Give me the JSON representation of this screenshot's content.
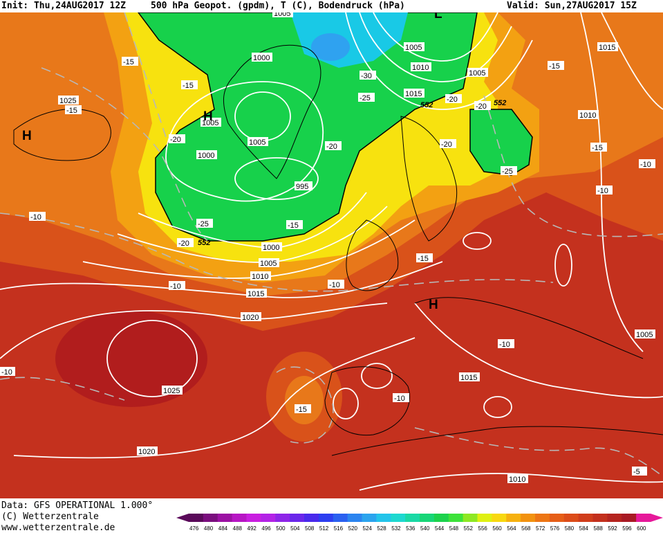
{
  "header": {
    "init": "Init: Thu,24AUG2017 12Z",
    "title": "500 hPa Geopot. (gpdm), T (C), Bodendruck (hPa)",
    "valid": "Valid: Sun,27AUG2017 15Z"
  },
  "footer": {
    "data_line": "Data: GFS OPERATIONAL 1.000°",
    "copyright": "(C) Wetterzentrale",
    "url": "www.wetterzentrale.de"
  },
  "colors": {
    "red_deep": "#b11d1d",
    "red": "#c4311e",
    "orange_red": "#d9521a",
    "orange": "#e8781a",
    "amber": "#f3a112",
    "yellow": "#f7e20f",
    "green": "#17d14b",
    "green_light": "#3ee85a",
    "cyan": "#19c9e6",
    "blue": "#2fa2f0"
  },
  "map": {
    "pressure_labels": [
      "1005",
      "1000",
      "1005",
      "1010",
      "1015",
      "1005",
      "1025",
      "1005",
      "1000",
      "1005",
      "995",
      "1000",
      "1005",
      "1010",
      "1015",
      "1020",
      "1025",
      "1020",
      "1015",
      "1010",
      "1010",
      "1015",
      "1005"
    ],
    "temp_labels": [
      "-15",
      "-15",
      "-15",
      "-20",
      "-30",
      "-25",
      "-20",
      "-20",
      "-20",
      "-25",
      "-15",
      "-25",
      "-20",
      "-15",
      "-15",
      "-10",
      "-10",
      "-10",
      "-15",
      "-10",
      "-10",
      "-10",
      "-15",
      "-10",
      "-5",
      "-20",
      "-10"
    ],
    "highs": [
      "H",
      "H",
      "H"
    ],
    "lows": [
      "L"
    ],
    "geopot_labels": [
      "552",
      "552",
      "552"
    ]
  },
  "scale": {
    "ticks": [
      "476",
      "480",
      "484",
      "488",
      "492",
      "496",
      "500",
      "504",
      "508",
      "512",
      "516",
      "520",
      "524",
      "528",
      "532",
      "536",
      "540",
      "544",
      "548",
      "552",
      "556",
      "560",
      "564",
      "568",
      "572",
      "576",
      "580",
      "584",
      "588",
      "592",
      "596",
      "600"
    ],
    "colors": [
      "#5a0a5a",
      "#7a0e7e",
      "#9b11a3",
      "#b716c4",
      "#c91ee0",
      "#b322e6",
      "#8e25e8",
      "#6a26ea",
      "#4929ec",
      "#2d3ef0",
      "#2a60f0",
      "#2b84ef",
      "#2ba4ee",
      "#23c4ea",
      "#1dd8d0",
      "#1ad9a5",
      "#17d677",
      "#1cd24c",
      "#3de23a",
      "#8ee823",
      "#dff012",
      "#f8d810",
      "#f6b10f",
      "#f2920f",
      "#ed7514",
      "#e65e17",
      "#dc4c19",
      "#d03d1b",
      "#c3301d",
      "#b5241f",
      "#a81a24",
      "#e6199a"
    ]
  }
}
